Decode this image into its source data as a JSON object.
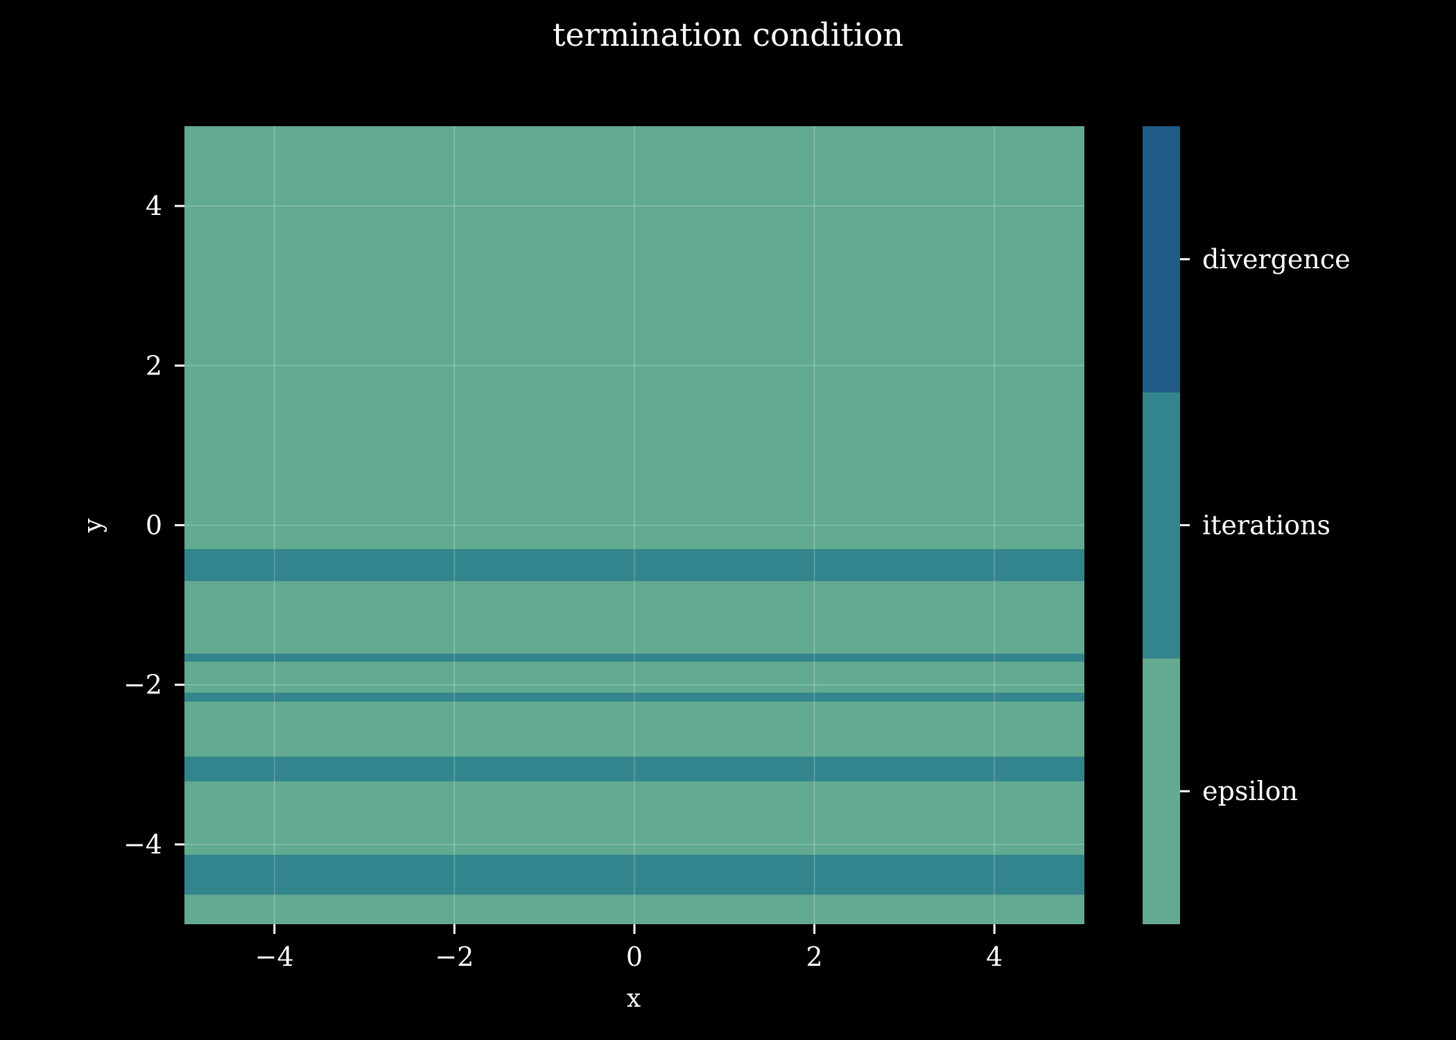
{
  "chart_data": {
    "type": "heatmap",
    "title": "termination condition",
    "xlabel": "x",
    "ylabel": "y",
    "xlim": [
      -5,
      5
    ],
    "ylim": [
      -5,
      5
    ],
    "x_ticks": [
      {
        "value": -4,
        "label": "−4"
      },
      {
        "value": -2,
        "label": "−2"
      },
      {
        "value": 0,
        "label": "0"
      },
      {
        "value": 2,
        "label": "2"
      },
      {
        "value": 4,
        "label": "4"
      }
    ],
    "y_ticks": [
      {
        "value": -4,
        "label": "−4"
      },
      {
        "value": -2,
        "label": "−2"
      },
      {
        "value": 0,
        "label": "0"
      },
      {
        "value": 2,
        "label": "2"
      },
      {
        "value": 4,
        "label": "4"
      }
    ],
    "grid": true,
    "background_category": "epsilon",
    "categories": [
      {
        "label": "epsilon",
        "color": "#62aa90"
      },
      {
        "label": "iterations",
        "color": "#32858d"
      },
      {
        "label": "divergence",
        "color": "#1e5c87"
      }
    ],
    "bands": [
      {
        "category": "iterations",
        "y_from": -0.3,
        "y_to": -0.7
      },
      {
        "category": "iterations",
        "y_from": -1.61,
        "y_to": -1.71
      },
      {
        "category": "iterations",
        "y_from": -2.1,
        "y_to": -2.21
      },
      {
        "category": "iterations",
        "y_from": -2.9,
        "y_to": -3.21
      },
      {
        "category": "iterations",
        "y_from": -4.13,
        "y_to": -4.63
      }
    ]
  }
}
